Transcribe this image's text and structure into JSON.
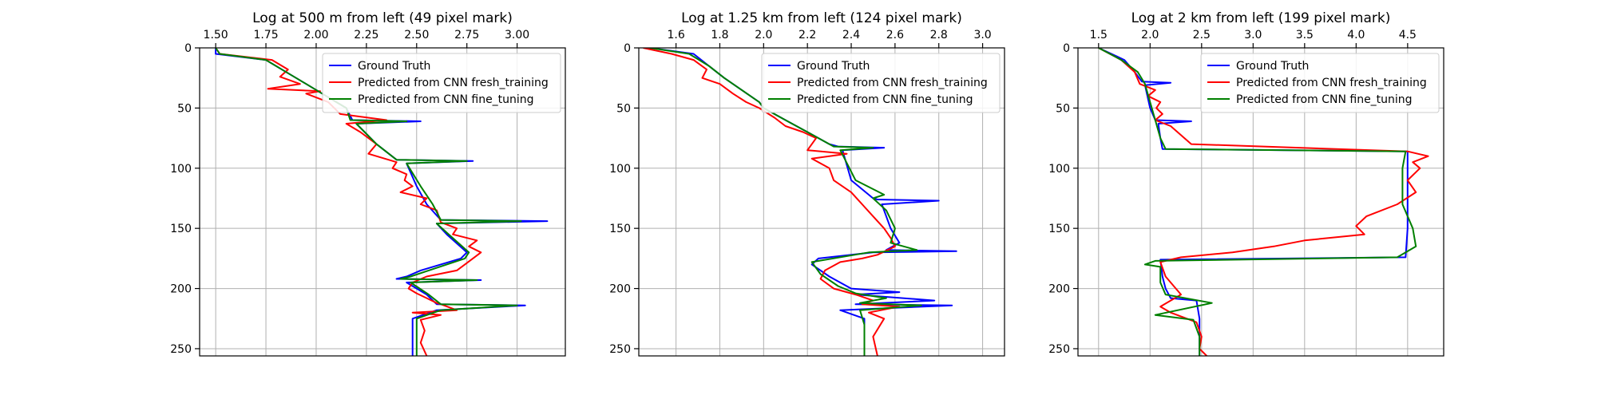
{
  "colors": {
    "ground_truth": "#0000ff",
    "fresh": "#ff0000",
    "fine": "#008000"
  },
  "chart_data": [
    {
      "type": "line",
      "title": "Log at 500 m from left (49 pixel mark)",
      "xlim": [
        1.42,
        3.24
      ],
      "ylim": [
        256,
        0
      ],
      "xticks": [
        "1.50",
        "1.75",
        "2.00",
        "2.25",
        "2.50",
        "2.75",
        "3.00"
      ],
      "yticks": [
        "0",
        "50",
        "100",
        "150",
        "200",
        "250"
      ],
      "grid": true,
      "legend_placement": "top-right",
      "series": [
        {
          "name": "Ground Truth",
          "color_key": "ground_truth",
          "x": [
            1.5,
            1.5,
            1.75,
            1.85,
            1.95,
            2.05,
            2.15,
            2.18,
            2.52,
            2.2,
            2.3,
            2.4,
            2.78,
            2.45,
            2.5,
            2.55,
            2.62,
            3.15,
            2.6,
            2.65,
            2.75,
            2.72,
            2.52,
            2.45,
            2.4,
            2.82,
            2.45,
            2.55,
            2.6,
            3.04,
            2.6,
            2.48,
            2.48,
            2.48
          ],
          "y": [
            0,
            5,
            10,
            20,
            30,
            40,
            50,
            60,
            61,
            63,
            80,
            93,
            94,
            96,
            115,
            130,
            143,
            144,
            146,
            155,
            170,
            175,
            185,
            190,
            192,
            193,
            195,
            205,
            213,
            214,
            218,
            225,
            240,
            256
          ]
        },
        {
          "name": "Predicted from CNN fresh_training",
          "color_key": "fresh",
          "x": [
            1.5,
            1.52,
            1.78,
            1.86,
            1.82,
            1.92,
            1.76,
            2.02,
            1.95,
            2.06,
            2.12,
            2.35,
            2.15,
            2.22,
            2.3,
            2.26,
            2.4,
            2.38,
            2.45,
            2.44,
            2.48,
            2.42,
            2.55,
            2.52,
            2.6,
            2.62,
            2.7,
            2.68,
            2.8,
            2.76,
            2.82,
            2.78,
            2.74,
            2.7,
            2.55,
            2.48,
            2.46,
            2.5,
            2.55,
            2.6,
            2.62,
            2.7,
            2.48,
            2.62,
            2.52,
            2.54,
            2.52,
            2.55
          ],
          "y": [
            0,
            5,
            10,
            18,
            24,
            30,
            34,
            36,
            38,
            45,
            55,
            60,
            63,
            70,
            80,
            88,
            95,
            100,
            105,
            110,
            115,
            120,
            125,
            130,
            135,
            145,
            150,
            155,
            160,
            165,
            170,
            175,
            180,
            185,
            190,
            195,
            200,
            204,
            208,
            212,
            213,
            218,
            220,
            222,
            226,
            235,
            245,
            256
          ]
        },
        {
          "name": "Predicted from CNN fine_tuning",
          "color_key": "fine",
          "x": [
            1.5,
            1.52,
            1.75,
            1.85,
            1.95,
            2.05,
            2.15,
            2.17,
            2.45,
            2.2,
            2.3,
            2.4,
            2.75,
            2.45,
            2.52,
            2.58,
            2.62,
            3.02,
            2.6,
            2.66,
            2.76,
            2.74,
            2.56,
            2.47,
            2.42,
            2.8,
            2.47,
            2.56,
            2.62,
            3.0,
            2.62,
            2.5,
            2.5,
            2.5
          ],
          "y": [
            0,
            5,
            10,
            20,
            30,
            40,
            50,
            60,
            61,
            63,
            80,
            93,
            94,
            96,
            115,
            130,
            143,
            144,
            146,
            155,
            170,
            175,
            185,
            190,
            192,
            193,
            195,
            205,
            213,
            214,
            218,
            225,
            240,
            256
          ]
        }
      ]
    },
    {
      "type": "line",
      "title": "Log at 1.25 km from left (124 pixel mark)",
      "xlim": [
        1.43,
        3.1
      ],
      "ylim": [
        256,
        0
      ],
      "xticks": [
        "1.6",
        "1.8",
        "2.0",
        "2.2",
        "2.4",
        "2.6",
        "2.8",
        "3.0"
      ],
      "yticks": [
        "0",
        "50",
        "100",
        "150",
        "200",
        "250"
      ],
      "grid": true,
      "legend_placement": "top-right",
      "series": [
        {
          "name": "Ground Truth",
          "color_key": "ground_truth",
          "x": [
            1.48,
            1.68,
            1.75,
            1.82,
            1.9,
            1.98,
            2.0,
            2.1,
            2.2,
            2.3,
            2.34,
            2.55,
            2.36,
            2.4,
            2.5,
            2.52,
            2.8,
            2.54,
            2.58,
            2.62,
            2.56,
            2.88,
            2.5,
            2.25,
            2.22,
            2.3,
            2.4,
            2.62,
            2.42,
            2.78,
            2.42,
            2.86,
            2.35,
            2.46,
            2.46,
            2.46
          ],
          "y": [
            0,
            5,
            15,
            25,
            35,
            45,
            50,
            60,
            70,
            80,
            82,
            83,
            85,
            110,
            125,
            126,
            127,
            130,
            150,
            162,
            168,
            169,
            170,
            175,
            180,
            190,
            200,
            203,
            205,
            210,
            213,
            214,
            218,
            225,
            240,
            256
          ]
        },
        {
          "name": "Predicted from CNN fresh_training",
          "color_key": "fresh",
          "x": [
            1.45,
            1.58,
            1.68,
            1.74,
            1.72,
            1.8,
            1.86,
            1.92,
            1.98,
            2.05,
            2.1,
            2.18,
            2.24,
            2.2,
            2.38,
            2.22,
            2.3,
            2.32,
            2.4,
            2.45,
            2.5,
            2.55,
            2.58,
            2.6,
            2.52,
            2.45,
            2.35,
            2.28,
            2.26,
            2.32,
            2.42,
            2.5,
            2.45,
            2.62,
            2.48,
            2.55,
            2.5,
            2.52
          ],
          "y": [
            0,
            5,
            10,
            18,
            25,
            30,
            38,
            45,
            50,
            58,
            65,
            70,
            75,
            85,
            88,
            92,
            100,
            110,
            120,
            130,
            140,
            150,
            158,
            165,
            172,
            175,
            178,
            185,
            192,
            200,
            205,
            210,
            213,
            215,
            220,
            225,
            240,
            256
          ]
        },
        {
          "name": "Predicted from CNN fine_tuning",
          "color_key": "fine",
          "x": [
            1.48,
            1.66,
            1.75,
            1.82,
            1.9,
            1.98,
            2.0,
            2.1,
            2.2,
            2.3,
            2.32,
            2.5,
            2.35,
            2.42,
            2.55,
            2.5,
            2.56,
            2.6,
            2.58,
            2.7,
            2.48,
            2.22,
            2.26,
            2.34,
            2.42,
            2.56,
            2.44,
            2.72,
            2.44,
            2.46,
            2.46
          ],
          "y": [
            0,
            5,
            15,
            25,
            35,
            45,
            50,
            60,
            70,
            80,
            82,
            83,
            85,
            110,
            122,
            125,
            135,
            150,
            162,
            168,
            170,
            178,
            188,
            198,
            204,
            208,
            212,
            214,
            218,
            230,
            256
          ]
        }
      ]
    },
    {
      "type": "line",
      "title": "Log at 2 km from left (199 pixel mark)",
      "xlim": [
        1.3,
        4.85
      ],
      "ylim": [
        256,
        0
      ],
      "xticks": [
        "1.5",
        "2.0",
        "2.5",
        "3.0",
        "3.5",
        "4.0",
        "4.5"
      ],
      "yticks": [
        "0",
        "50",
        "100",
        "150",
        "200",
        "250"
      ],
      "grid": true,
      "legend_placement": "top-right",
      "series": [
        {
          "name": "Ground Truth",
          "color_key": "ground_truth",
          "x": [
            1.5,
            1.75,
            1.85,
            1.92,
            2.2,
            1.95,
            2.0,
            2.05,
            2.4,
            2.08,
            2.1,
            2.12,
            4.5,
            4.5,
            4.5,
            4.48,
            2.1,
            2.12,
            2.15,
            2.2,
            2.45,
            2.48,
            2.48
          ],
          "y": [
            0,
            10,
            20,
            28,
            29,
            31,
            50,
            60,
            61,
            63,
            75,
            84,
            86,
            120,
            150,
            174,
            176,
            190,
            200,
            208,
            210,
            225,
            256
          ]
        },
        {
          "name": "Predicted from CNN fresh_training",
          "color_key": "fresh",
          "x": [
            1.5,
            1.72,
            1.85,
            1.9,
            2.05,
            1.98,
            2.1,
            2.06,
            2.12,
            2.05,
            2.2,
            2.4,
            4.5,
            4.7,
            4.55,
            4.62,
            4.5,
            4.58,
            4.4,
            4.1,
            4.0,
            4.08,
            3.5,
            3.2,
            2.8,
            2.3,
            2.1,
            2.15,
            2.3,
            2.1,
            2.2,
            2.45,
            2.5,
            2.48,
            2.55
          ],
          "y": [
            0,
            10,
            20,
            30,
            35,
            40,
            45,
            50,
            55,
            60,
            65,
            80,
            86,
            90,
            95,
            100,
            110,
            120,
            130,
            140,
            148,
            155,
            160,
            165,
            170,
            174,
            178,
            190,
            205,
            215,
            220,
            228,
            240,
            250,
            256
          ]
        },
        {
          "name": "Predicted from CNN fine_tuning",
          "color_key": "fine",
          "x": [
            1.5,
            1.72,
            1.88,
            1.95,
            2.0,
            2.05,
            2.1,
            2.15,
            4.48,
            4.45,
            4.45,
            4.55,
            4.58,
            4.4,
            2.05,
            1.95,
            2.1,
            2.1,
            2.15,
            2.6,
            2.05,
            2.42,
            2.48,
            2.48
          ],
          "y": [
            0,
            10,
            20,
            30,
            45,
            60,
            75,
            84,
            86,
            100,
            130,
            150,
            165,
            174,
            177,
            180,
            182,
            195,
            205,
            212,
            222,
            226,
            240,
            256
          ]
        }
      ]
    }
  ]
}
